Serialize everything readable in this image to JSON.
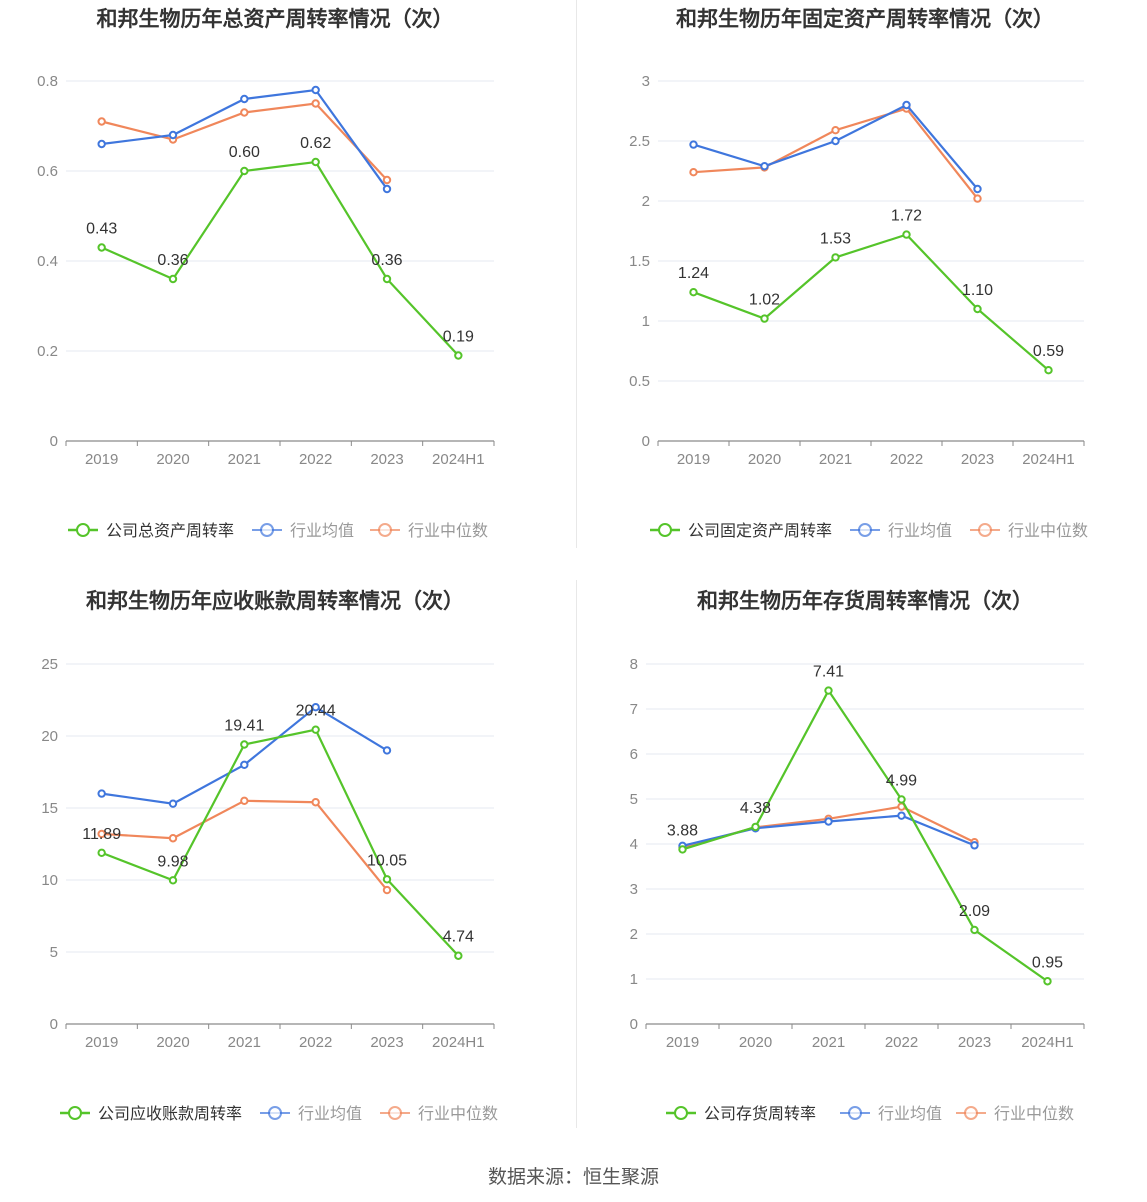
{
  "footer": "数据来源：恒生聚源",
  "colors": {
    "company": "#55c42a",
    "mean": "#3f76dd",
    "median": "#f0875b",
    "grid": "#e6e9f0",
    "axis": "#8a8a8a",
    "text": "#333333"
  },
  "chart_data": [
    {
      "type": "line",
      "title": "和邦生物历年总资产周转率情况（次）",
      "categories": [
        "2019",
        "2020",
        "2021",
        "2022",
        "2023",
        "2024H1"
      ],
      "ylim": [
        0,
        0.8
      ],
      "yticks": [
        0,
        0.2,
        0.4,
        0.6,
        0.8
      ],
      "ytick_labels": [
        "0",
        "0.2",
        "0.4",
        "0.6",
        "0.8"
      ],
      "grid": true,
      "legend_position": "bottom",
      "series": [
        {
          "name": "公司总资产周转率",
          "role": "company",
          "values": [
            0.43,
            0.36,
            0.6,
            0.62,
            0.36,
            0.19
          ],
          "labels": [
            "0.43",
            "0.36",
            "0.60",
            "0.62",
            "0.36",
            "0.19"
          ]
        },
        {
          "name": "行业均值",
          "role": "mean",
          "values": [
            0.66,
            0.68,
            0.76,
            0.78,
            0.56,
            null
          ]
        },
        {
          "name": "行业中位数",
          "role": "median",
          "values": [
            0.71,
            0.67,
            0.73,
            0.75,
            0.58,
            null
          ]
        }
      ]
    },
    {
      "type": "line",
      "title": "和邦生物历年固定资产周转率情况（次）",
      "categories": [
        "2019",
        "2020",
        "2021",
        "2022",
        "2023",
        "2024H1"
      ],
      "ylim": [
        0,
        3
      ],
      "yticks": [
        0,
        0.5,
        1,
        1.5,
        2,
        2.5,
        3
      ],
      "ytick_labels": [
        "0",
        "0.5",
        "1",
        "1.5",
        "2",
        "2.5",
        "3"
      ],
      "grid": true,
      "legend_position": "bottom",
      "series": [
        {
          "name": "公司固定资产周转率",
          "role": "company",
          "values": [
            1.24,
            1.02,
            1.53,
            1.72,
            1.1,
            0.59
          ],
          "labels": [
            "1.24",
            "1.02",
            "1.53",
            "1.72",
            "1.10",
            "0.59"
          ]
        },
        {
          "name": "行业均值",
          "role": "mean",
          "values": [
            2.47,
            2.29,
            2.5,
            2.8,
            2.1,
            null
          ]
        },
        {
          "name": "行业中位数",
          "role": "median",
          "values": [
            2.24,
            2.28,
            2.59,
            2.77,
            2.02,
            null
          ]
        }
      ]
    },
    {
      "type": "line",
      "title": "和邦生物历年应收账款周转率情况（次）",
      "categories": [
        "2019",
        "2020",
        "2021",
        "2022",
        "2023",
        "2024H1"
      ],
      "ylim": [
        0,
        25
      ],
      "yticks": [
        0,
        5,
        10,
        15,
        20,
        25
      ],
      "ytick_labels": [
        "0",
        "5",
        "10",
        "15",
        "20",
        "25"
      ],
      "grid": true,
      "legend_position": "bottom",
      "series": [
        {
          "name": "公司应收账款周转率",
          "role": "company",
          "values": [
            11.89,
            9.98,
            19.41,
            20.44,
            10.05,
            4.74
          ],
          "labels": [
            "11.89",
            "9.98",
            "19.41",
            "20.44",
            "10.05",
            "4.74"
          ]
        },
        {
          "name": "行业均值",
          "role": "mean",
          "values": [
            16.0,
            15.3,
            18.0,
            22.0,
            19.0,
            null
          ]
        },
        {
          "name": "行业中位数",
          "role": "median",
          "values": [
            13.2,
            12.9,
            15.5,
            15.4,
            9.3,
            null
          ]
        }
      ]
    },
    {
      "type": "line",
      "title": "和邦生物历年存货周转率情况（次）",
      "categories": [
        "2019",
        "2020",
        "2021",
        "2022",
        "2023",
        "2024H1"
      ],
      "ylim": [
        0,
        8
      ],
      "yticks": [
        0,
        1,
        2,
        3,
        4,
        5,
        6,
        7,
        8
      ],
      "ytick_labels": [
        "0",
        "1",
        "2",
        "3",
        "4",
        "5",
        "6",
        "7",
        "8"
      ],
      "grid": true,
      "legend_position": "bottom",
      "series": [
        {
          "name": "公司存货周转率",
          "role": "company",
          "values": [
            3.88,
            4.38,
            7.41,
            4.99,
            2.09,
            0.95
          ],
          "labels": [
            "3.88",
            "4.38",
            "7.41",
            "4.99",
            "2.09",
            "0.95"
          ]
        },
        {
          "name": "行业均值",
          "role": "mean",
          "values": [
            3.96,
            4.35,
            4.5,
            4.63,
            3.97,
            null
          ]
        },
        {
          "name": "行业中位数",
          "role": "median",
          "values": [
            3.92,
            4.37,
            4.56,
            4.83,
            4.04,
            null
          ]
        }
      ]
    }
  ]
}
